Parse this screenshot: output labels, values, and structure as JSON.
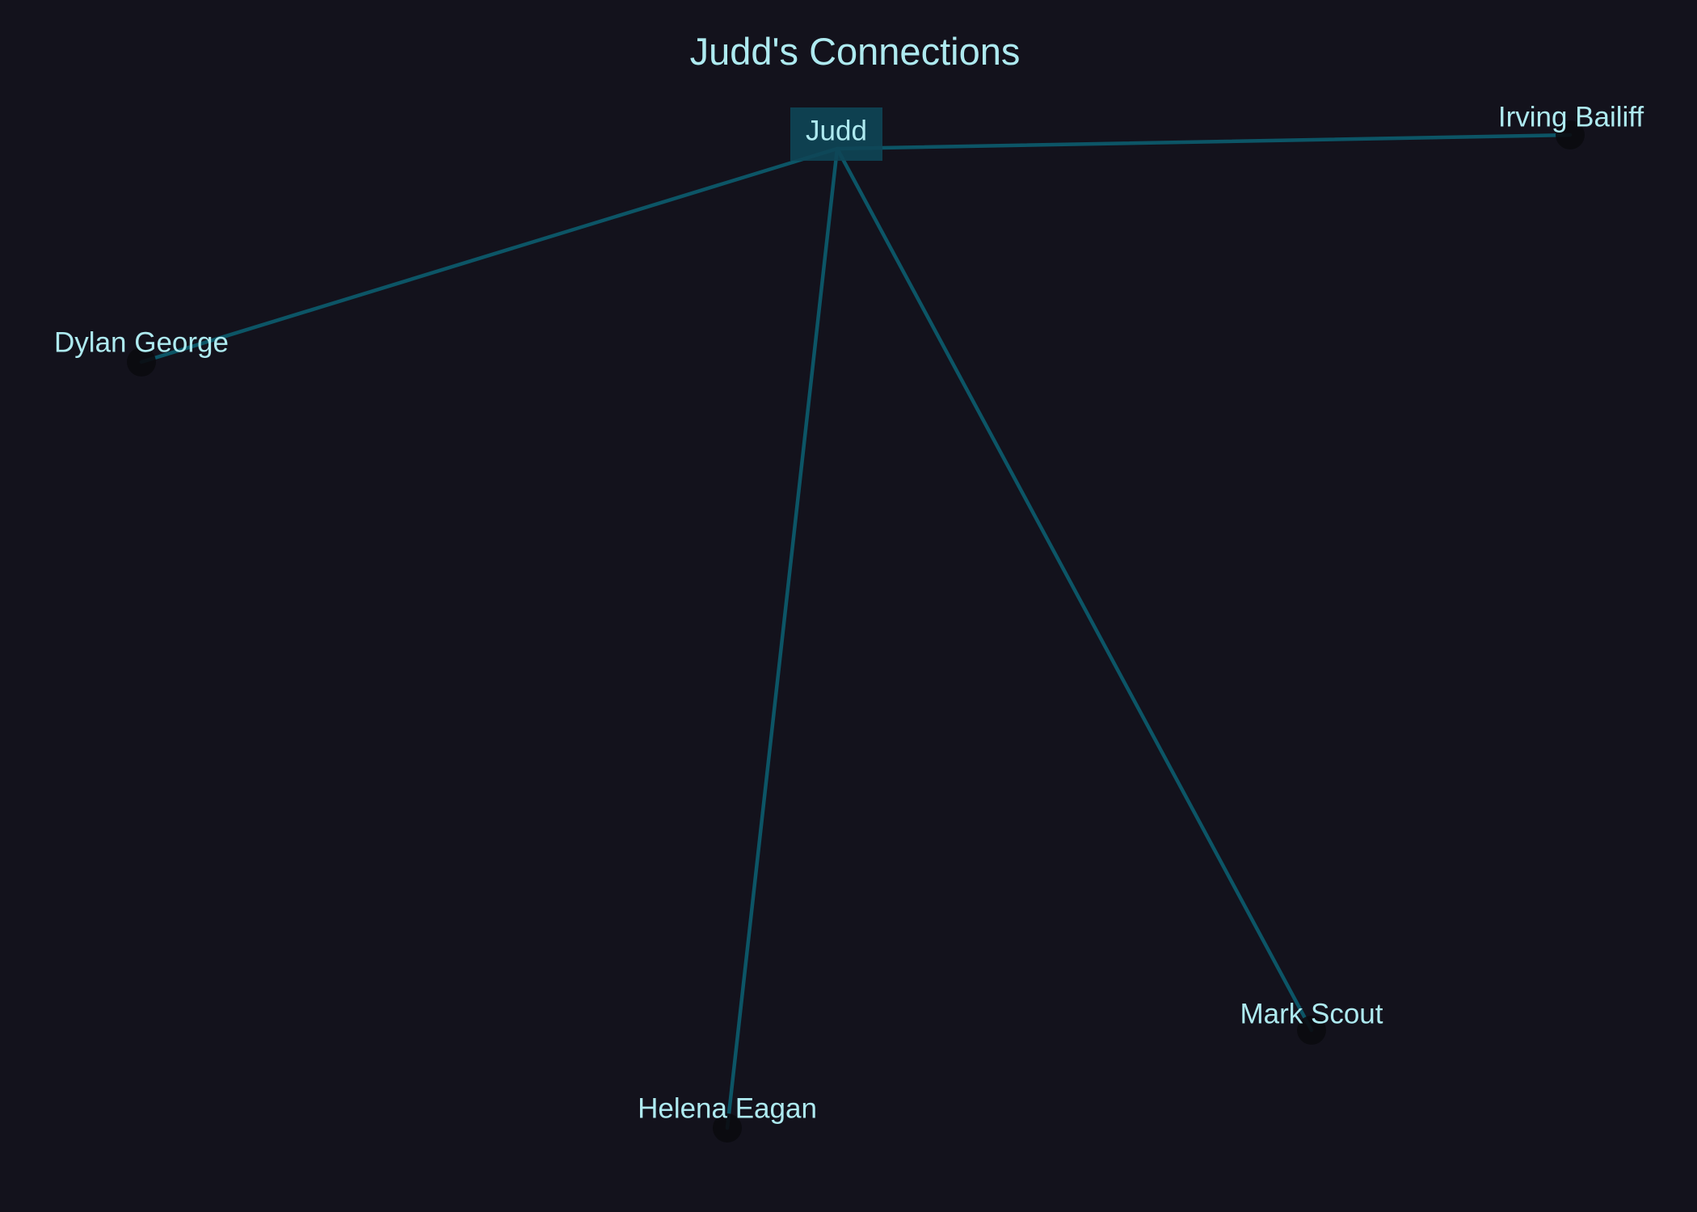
{
  "title": "Judd's Connections",
  "center": {
    "name": "Judd"
  },
  "connections": [
    {
      "name": "Irving Bailiff"
    },
    {
      "name": "Dylan George"
    },
    {
      "name": "Helena Eagan"
    },
    {
      "name": "Mark Scout"
    }
  ],
  "colors": {
    "background": "#13121c",
    "text": "#aeeaf0",
    "edge": "#0c5566",
    "center_box": "#0e4657",
    "node_marker": "#0b0b0f"
  }
}
